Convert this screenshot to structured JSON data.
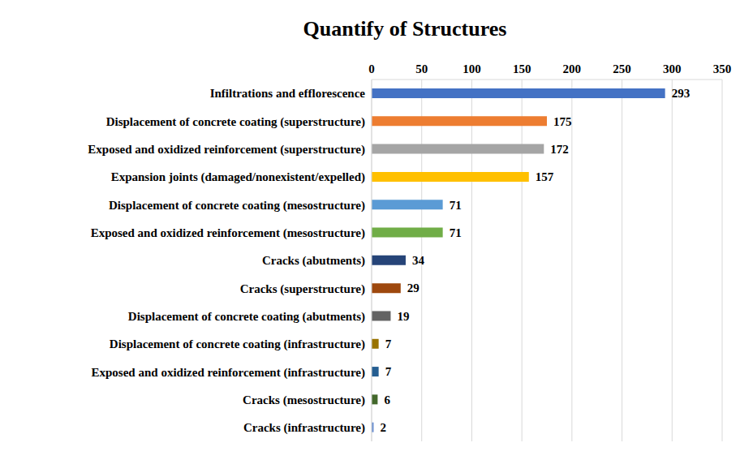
{
  "chart_data": {
    "type": "bar",
    "title": "Quantify of Structures",
    "orientation": "horizontal",
    "categories": [
      "Infiltrations and efflorescence",
      "Displacement of concrete coating (superstructure)",
      "Exposed and oxidized reinforcement (superstructure)",
      "Expansion joints (damaged/nonexistent/expelled)",
      "Displacement of concrete coating (mesostructure)",
      "Exposed and oxidized reinforcement (mesostructure)",
      "Cracks (abutments)",
      "Cracks (superstructure)",
      "Displacement of concrete coating (abutments)",
      "Displacement of concrete coating (infrastructure)",
      "Exposed and oxidized reinforcement (infrastructure)",
      "Cracks (mesostructure)",
      "Cracks (infrastructure)"
    ],
    "values": [
      293,
      175,
      172,
      157,
      71,
      71,
      34,
      29,
      19,
      7,
      7,
      6,
      2
    ],
    "colors": [
      "#4472c4",
      "#ed7d31",
      "#a5a5a5",
      "#ffc000",
      "#5b9bd5",
      "#70ad47",
      "#264478",
      "#9e480e",
      "#636363",
      "#997300",
      "#255e91",
      "#43682b",
      "#698ed0"
    ],
    "xlim": [
      0,
      350
    ],
    "xticks": [
      0,
      50,
      100,
      150,
      200,
      250,
      300,
      350
    ],
    "grid": true,
    "data_labels": true
  }
}
